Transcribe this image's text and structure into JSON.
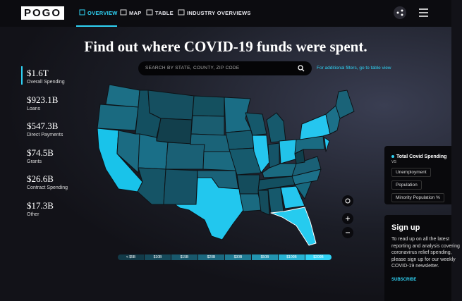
{
  "header": {
    "logo": "POGO",
    "nav": [
      "OVERVIEW",
      "MAP",
      "TABLE",
      "INDUSTRY OVERVIEWS"
    ]
  },
  "headline": "Find out where COVID-19 funds were spent.",
  "search": {
    "placeholder": "SEARCH BY STATE, COUNTY, ZIP CODE",
    "filters_link": "For additional filters, go to table view"
  },
  "stats": [
    {
      "amount": "$1.6T",
      "label": "Overall Spending"
    },
    {
      "amount": "$923.1B",
      "label": "Loans"
    },
    {
      "amount": "$547.3B",
      "label": "Direct Payments"
    },
    {
      "amount": "$74.5B",
      "label": "Grants"
    },
    {
      "amount": "$26.6B",
      "label": "Contract Spending"
    },
    {
      "amount": "$17.3B",
      "label": "Other"
    }
  ],
  "legend": [
    "< $5B",
    "$10B",
    "$15B",
    "$20B",
    "$30B",
    "$50B",
    "$100B",
    "$200B"
  ],
  "compare_panel": {
    "title": "Total Covid Spending",
    "vs": "vs",
    "options": [
      "Unemployment",
      "Population",
      "Minority Population %"
    ]
  },
  "signup": {
    "title": "Sign up",
    "text": "To read up on all the latest reporting and analysis covering coronavirus relief spending, please sign up for our weekly COVID-19 newsletter.",
    "button": "SUBSCRIBE"
  }
}
